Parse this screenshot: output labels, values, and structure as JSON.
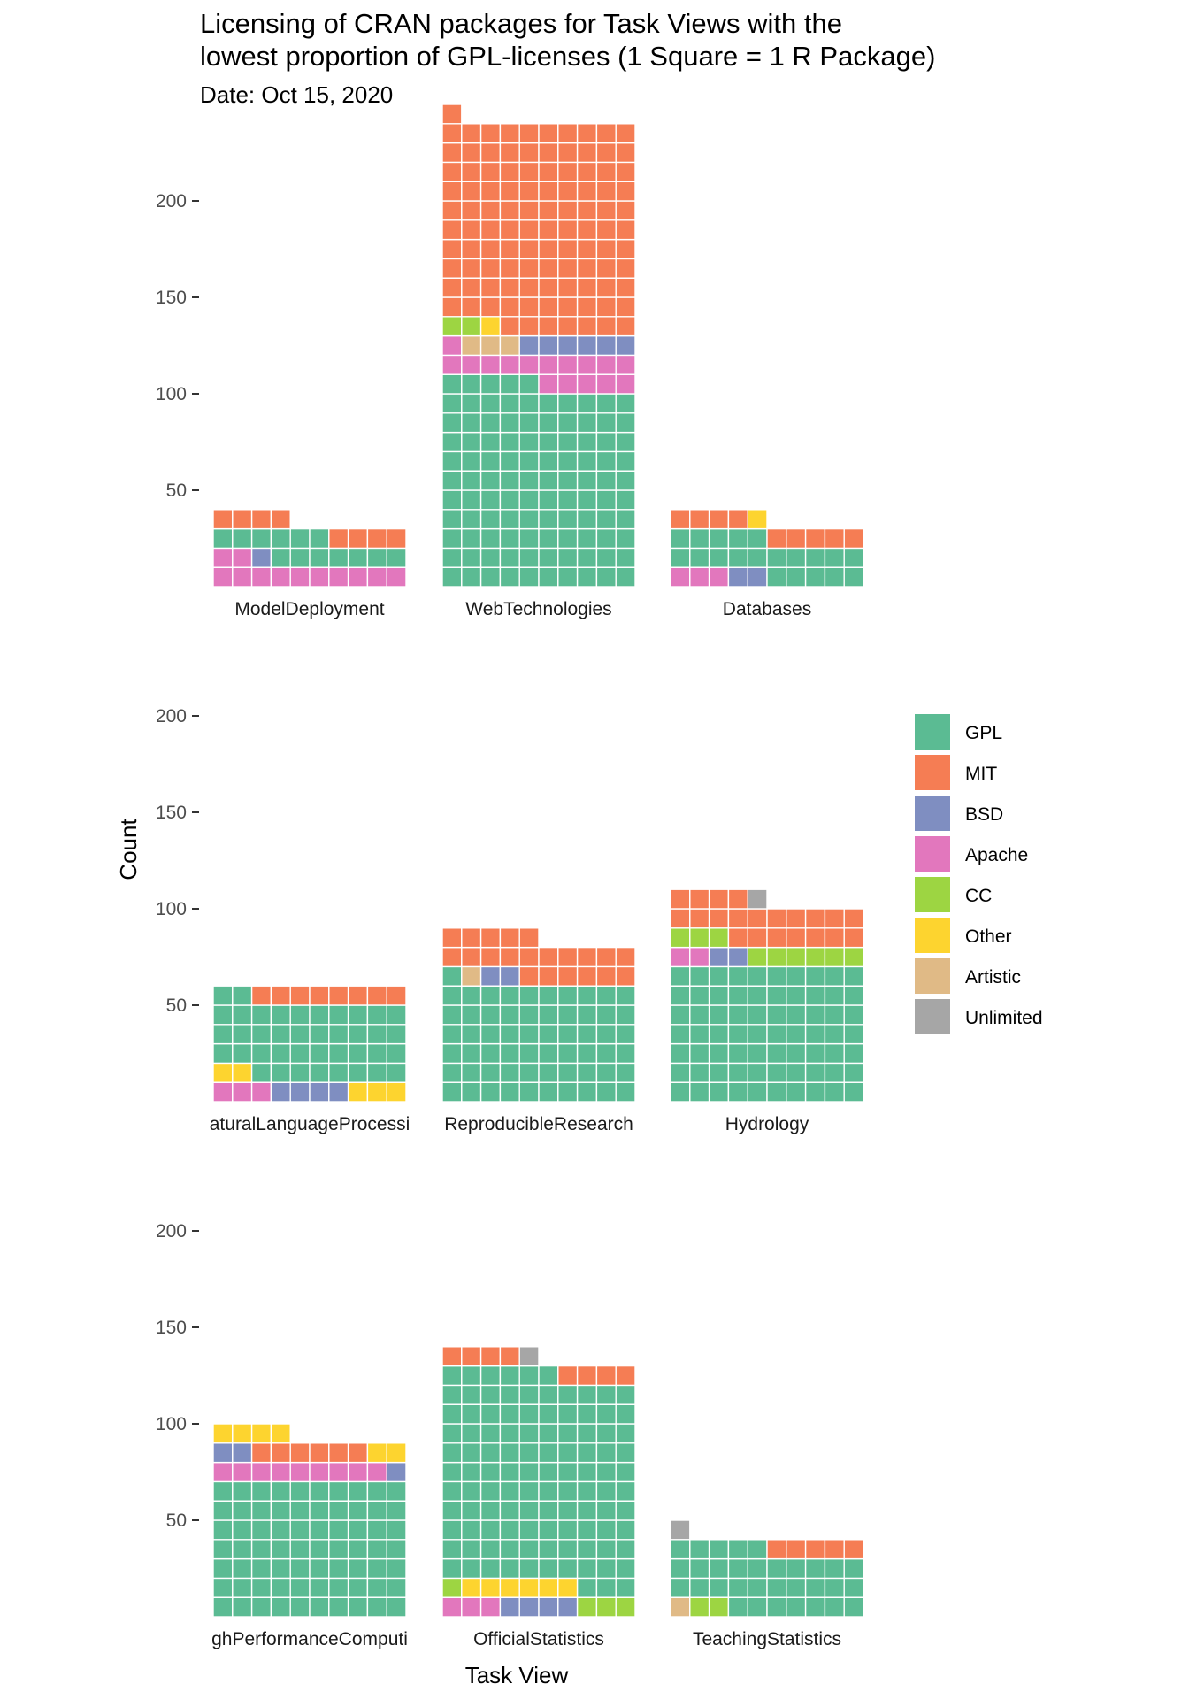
{
  "chart_data": {
    "type": "waffle",
    "title_lines": [
      "Licensing of CRAN packages for Task Views with the",
      "lowest proportion of GPL-licenses (1 Square = 1 R Package)"
    ],
    "subtitle": "Date: Oct 15, 2020",
    "xlabel": "Task View",
    "ylabel": "Count",
    "squares_per_row": 10,
    "ylim": [
      0,
      240
    ],
    "yticks": [
      50,
      100,
      150,
      200
    ],
    "legend_position": "right",
    "grid": false,
    "series": [
      {
        "name": "GPL",
        "color": "#5BBB93"
      },
      {
        "name": "MIT",
        "color": "#F57D54"
      },
      {
        "name": "BSD",
        "color": "#7F8EC1"
      },
      {
        "name": "Apache",
        "color": "#E277BD"
      },
      {
        "name": "CC",
        "color": "#9DD542"
      },
      {
        "name": "Other",
        "color": "#FDD42F"
      },
      {
        "name": "Artistic",
        "color": "#E0BA86"
      },
      {
        "name": "Unlimited",
        "color": "#A6A6A6"
      }
    ],
    "panels": [
      {
        "name": "ModelDeployment",
        "display_label": "ModelDeployment",
        "values": {
          "Apache": 12,
          "BSD": 1,
          "GPL": 13,
          "MIT": 8,
          "CC": 0,
          "Other": 0,
          "Artistic": 0,
          "Unlimited": 0
        }
      },
      {
        "name": "WebTechnologies",
        "display_label": "WebTechnologies",
        "values": {
          "GPL": 105,
          "Apache": 16,
          "Artistic": 3,
          "BSD": 6,
          "CC": 2,
          "Other": 1,
          "MIT": 108,
          "Unlimited": 0
        }
      },
      {
        "name": "Databases",
        "display_label": "Databases",
        "values": {
          "Apache": 3,
          "BSD": 2,
          "GPL": 20,
          "MIT": 9,
          "Other": 1,
          "CC": 0,
          "Artistic": 0,
          "Unlimited": 0
        }
      },
      {
        "name": "NaturalLanguageProcessing",
        "display_label": "aturalLanguageProcessi",
        "values": {
          "Apache": 3,
          "BSD": 4,
          "Other": 5,
          "GPL": 40,
          "MIT": 8,
          "CC": 0,
          "Artistic": 0,
          "Unlimited": 0
        }
      },
      {
        "name": "ReproducibleResearch",
        "display_label": "ReproducibleResearch",
        "values": {
          "GPL": 61,
          "Artistic": 1,
          "BSD": 2,
          "MIT": 21,
          "Apache": 0,
          "CC": 0,
          "Other": 0,
          "Unlimited": 0
        }
      },
      {
        "name": "Hydrology",
        "display_label": "Hydrology",
        "values": {
          "GPL": 70,
          "Apache": 2,
          "BSD": 2,
          "CC": 9,
          "MIT": 21,
          "Unlimited": 1,
          "Other": 0,
          "Artistic": 0
        }
      },
      {
        "name": "HighPerformanceComputing",
        "display_label": "ghPerformanceComputi",
        "values": {
          "GPL": 70,
          "Apache": 9,
          "BSD": 3,
          "MIT": 6,
          "Other": 6,
          "CC": 0,
          "Artistic": 0,
          "Unlimited": 0
        }
      },
      {
        "name": "OfficialStatistics",
        "display_label": "OfficialStatistics",
        "values": {
          "Apache": 3,
          "BSD": 4,
          "CC": 4,
          "Other": 6,
          "GPL": 109,
          "MIT": 8,
          "Unlimited": 1,
          "Artistic": 0
        }
      },
      {
        "name": "TeachingStatistics",
        "display_label": "TeachingStatistics",
        "values": {
          "Artistic": 1,
          "CC": 2,
          "GPL": 32,
          "MIT": 5,
          "Unlimited": 1,
          "BSD": 0,
          "Apache": 0,
          "Other": 0
        }
      }
    ],
    "stack_order": [
      [
        "Apache",
        "BSD",
        "GPL",
        "MIT"
      ],
      [
        "GPL",
        "Apache",
        "Artistic",
        "BSD",
        "CC",
        "Other",
        "MIT"
      ],
      [
        "Apache",
        "BSD",
        "GPL",
        "MIT",
        "Other",
        "MIT"
      ],
      [
        "Apache",
        "BSD",
        "Other",
        "GPL",
        "MIT"
      ],
      [
        "GPL",
        "Artistic",
        "BSD",
        "MIT"
      ],
      [
        "GPL",
        "Apache",
        "BSD",
        "CC",
        "MIT",
        "Unlimited"
      ],
      [
        "GPL",
        "Apache",
        "BSD",
        "MIT",
        "Other"
      ],
      [
        "Apache",
        "BSD",
        "CC",
        "Other",
        "GPL",
        "MIT",
        "Unlimited"
      ],
      [
        "Artistic",
        "CC",
        "GPL",
        "MIT",
        "Unlimited"
      ]
    ]
  }
}
